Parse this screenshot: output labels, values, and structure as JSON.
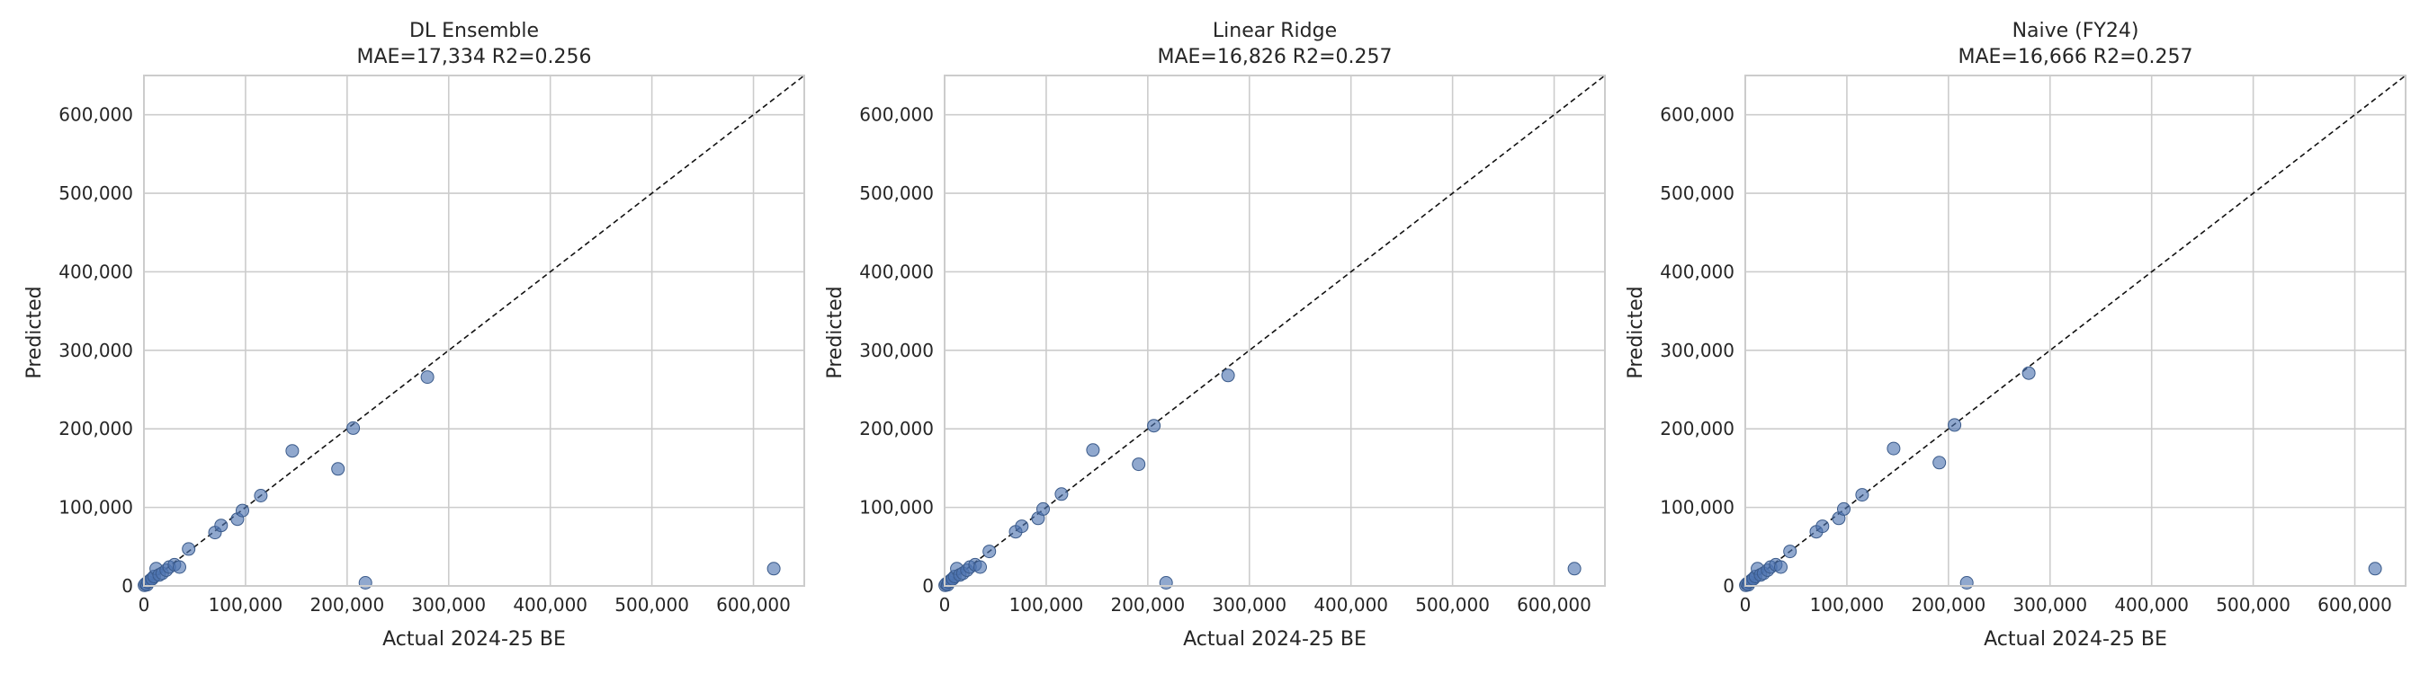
{
  "chart_data": [
    {
      "type": "scatter",
      "title": "DL Ensemble",
      "subtitle": "MAE=17,334  R2=0.256",
      "xlabel": "Actual 2024-25 BE",
      "ylabel": "Predicted",
      "xlim": [
        0,
        650000
      ],
      "ylim": [
        0,
        650000
      ],
      "xticks": [
        0,
        100000,
        200000,
        300000,
        400000,
        500000,
        600000
      ],
      "yticks": [
        0,
        100000,
        200000,
        300000,
        400000,
        500000,
        600000
      ],
      "xtick_labels": [
        "0",
        "100,000",
        "200,000",
        "300,000",
        "400,000",
        "500,000",
        "600,000"
      ],
      "ytick_labels": [
        "0",
        "100,000",
        "200,000",
        "300,000",
        "400,000",
        "500,000",
        "600,000"
      ],
      "grid": true,
      "reference_line": "y = x",
      "point_color": "#4c72b0",
      "points": [
        [
          500,
          800
        ],
        [
          1500,
          2500
        ],
        [
          3000,
          1500
        ],
        [
          4000,
          5000
        ],
        [
          6000,
          7000
        ],
        [
          8000,
          9000
        ],
        [
          10000,
          12000
        ],
        [
          12000,
          22000
        ],
        [
          15000,
          14000
        ],
        [
          18000,
          16000
        ],
        [
          22000,
          20000
        ],
        [
          25000,
          24000
        ],
        [
          30000,
          27000
        ],
        [
          35000,
          24000
        ],
        [
          44000,
          47000
        ],
        [
          70000,
          68000
        ],
        [
          76000,
          77000
        ],
        [
          92000,
          85000
        ],
        [
          97000,
          96000
        ],
        [
          115000,
          115000
        ],
        [
          146000,
          172000
        ],
        [
          191000,
          149000
        ],
        [
          206000,
          201000
        ],
        [
          218000,
          4000
        ],
        [
          279000,
          266000
        ],
        [
          620000,
          22000
        ]
      ]
    },
    {
      "type": "scatter",
      "title": "Linear Ridge",
      "subtitle": "MAE=16,826  R2=0.257",
      "xlabel": "Actual 2024-25 BE",
      "ylabel": "Predicted",
      "xlim": [
        0,
        650000
      ],
      "ylim": [
        0,
        650000
      ],
      "xticks": [
        0,
        100000,
        200000,
        300000,
        400000,
        500000,
        600000
      ],
      "yticks": [
        0,
        100000,
        200000,
        300000,
        400000,
        500000,
        600000
      ],
      "xtick_labels": [
        "0",
        "100,000",
        "200,000",
        "300,000",
        "400,000",
        "500,000",
        "600,000"
      ],
      "ytick_labels": [
        "0",
        "100,000",
        "200,000",
        "300,000",
        "400,000",
        "500,000",
        "600,000"
      ],
      "grid": true,
      "reference_line": "y = x",
      "point_color": "#4c72b0",
      "points": [
        [
          500,
          800
        ],
        [
          1500,
          2500
        ],
        [
          3000,
          1500
        ],
        [
          4000,
          5000
        ],
        [
          6000,
          7000
        ],
        [
          8000,
          9000
        ],
        [
          10000,
          12000
        ],
        [
          12000,
          22000
        ],
        [
          15000,
          14000
        ],
        [
          18000,
          16000
        ],
        [
          22000,
          20000
        ],
        [
          25000,
          24000
        ],
        [
          30000,
          27000
        ],
        [
          35000,
          24000
        ],
        [
          44000,
          44000
        ],
        [
          70000,
          69000
        ],
        [
          76000,
          76000
        ],
        [
          92000,
          86000
        ],
        [
          97000,
          98000
        ],
        [
          115000,
          117000
        ],
        [
          146000,
          173000
        ],
        [
          191000,
          155000
        ],
        [
          206000,
          204000
        ],
        [
          218000,
          4000
        ],
        [
          279000,
          268000
        ],
        [
          620000,
          22000
        ]
      ]
    },
    {
      "type": "scatter",
      "title": "Naive (FY24)",
      "subtitle": "MAE=16,666  R2=0.257",
      "xlabel": "Actual 2024-25 BE",
      "ylabel": "Predicted",
      "xlim": [
        0,
        650000
      ],
      "ylim": [
        0,
        650000
      ],
      "xticks": [
        0,
        100000,
        200000,
        300000,
        400000,
        500000,
        600000
      ],
      "yticks": [
        0,
        100000,
        200000,
        300000,
        400000,
        500000,
        600000
      ],
      "xtick_labels": [
        "0",
        "100,000",
        "200,000",
        "300,000",
        "400,000",
        "500,000",
        "600,000"
      ],
      "ytick_labels": [
        "0",
        "100,000",
        "200,000",
        "300,000",
        "400,000",
        "500,000",
        "600,000"
      ],
      "grid": true,
      "reference_line": "y = x",
      "point_color": "#4c72b0",
      "points": [
        [
          500,
          800
        ],
        [
          1500,
          2500
        ],
        [
          3000,
          1500
        ],
        [
          4000,
          5000
        ],
        [
          6000,
          7000
        ],
        [
          8000,
          9000
        ],
        [
          10000,
          12000
        ],
        [
          12000,
          22000
        ],
        [
          15000,
          14000
        ],
        [
          18000,
          16000
        ],
        [
          22000,
          20000
        ],
        [
          25000,
          24000
        ],
        [
          30000,
          27000
        ],
        [
          35000,
          24000
        ],
        [
          44000,
          44000
        ],
        [
          70000,
          69000
        ],
        [
          76000,
          76000
        ],
        [
          92000,
          86000
        ],
        [
          97000,
          98000
        ],
        [
          115000,
          116000
        ],
        [
          146000,
          175000
        ],
        [
          191000,
          157000
        ],
        [
          206000,
          205000
        ],
        [
          218000,
          4000
        ],
        [
          279000,
          271000
        ],
        [
          620000,
          22000
        ]
      ]
    }
  ]
}
